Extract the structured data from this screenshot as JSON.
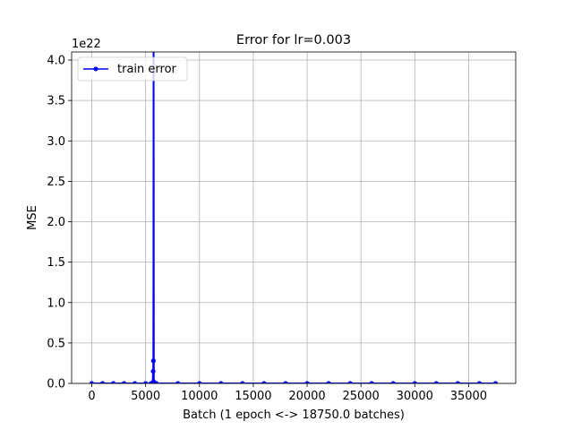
{
  "chart_data": {
    "type": "line",
    "title": "Error for lr=0.003",
    "xlabel": "Batch (1 epoch <-> 18750.0 batches)",
    "ylabel": "MSE",
    "y_offset_label": "1e22",
    "xlim": [
      -1875,
      39375
    ],
    "ylim": [
      0,
      4.1
    ],
    "x_ticks": [
      0,
      5000,
      10000,
      15000,
      20000,
      25000,
      30000,
      35000
    ],
    "x_tick_labels": [
      "0",
      "5000",
      "10000",
      "15000",
      "20000",
      "25000",
      "30000",
      "35000"
    ],
    "y_ticks": [
      0,
      0.5,
      1.0,
      1.5,
      2.0,
      2.5,
      3.0,
      3.5,
      4.0
    ],
    "y_tick_labels": [
      "0.0",
      "0.5",
      "1.0",
      "1.5",
      "2.0",
      "2.5",
      "3.0",
      "3.5",
      "4.0"
    ],
    "grid": true,
    "legend_position": "upper-left",
    "series": [
      {
        "name": "train error",
        "color": "#0000ff",
        "marker": "circle",
        "x": [
          0,
          1000,
          2000,
          3000,
          4000,
          5000,
          5500,
          5650,
          5700,
          5720,
          5740,
          5760,
          5780,
          5800,
          6000,
          8000,
          10000,
          12000,
          14000,
          16000,
          18000,
          20000,
          22000,
          24000,
          26000,
          28000,
          30000,
          32000,
          34000,
          36000,
          37500
        ],
        "y": [
          0,
          0,
          0,
          0,
          0,
          0,
          0,
          0.01,
          0.15,
          0.28,
          4.2,
          0.02,
          0,
          0,
          0,
          0,
          0,
          0,
          0,
          0,
          0,
          0,
          0,
          0,
          0,
          0,
          0,
          0,
          0,
          0,
          0
        ]
      }
    ]
  }
}
